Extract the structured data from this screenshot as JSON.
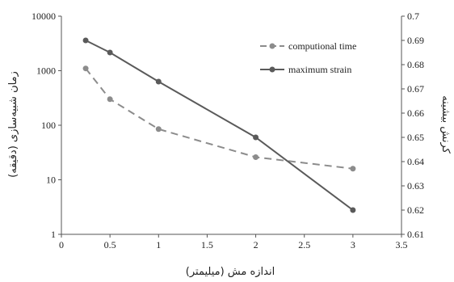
{
  "chart_data": {
    "type": "line",
    "xlabel": "اندازه مش (میلیمتر)",
    "ylabel_left": "زمان شبیه‌سازی (دقیقه)",
    "ylabel_right": "کرنش بیشینه",
    "x_ticks": [
      "0",
      "0.5",
      "1",
      "1.5",
      "2",
      "2.5",
      "3",
      "3.5"
    ],
    "y_left_ticks": [
      "1",
      "10",
      "100",
      "1000",
      "10000"
    ],
    "y_right_ticks": [
      "0.61",
      "0.62",
      "0.63",
      "0.64",
      "0.65",
      "0.66",
      "0.67",
      "0.68",
      "0.69",
      "0.7"
    ],
    "xlim": [
      0,
      3.5
    ],
    "ylim_left": [
      1,
      10000
    ],
    "ylim_left_scale": "log",
    "ylim_right": [
      0.61,
      0.7
    ],
    "grid": false,
    "legend_position": "top-right",
    "series": [
      {
        "name": "computional time",
        "axis": "left",
        "style": "dashed",
        "color": "#8c8c8c",
        "x": [
          0.25,
          0.5,
          1,
          2,
          3
        ],
        "y": [
          1100,
          300,
          85,
          26,
          16
        ]
      },
      {
        "name": "maximum strain",
        "axis": "right",
        "style": "solid",
        "color": "#5a5a5a",
        "x": [
          0.25,
          0.5,
          1,
          2,
          3
        ],
        "y": [
          0.69,
          0.685,
          0.673,
          0.65,
          0.62
        ]
      }
    ]
  }
}
